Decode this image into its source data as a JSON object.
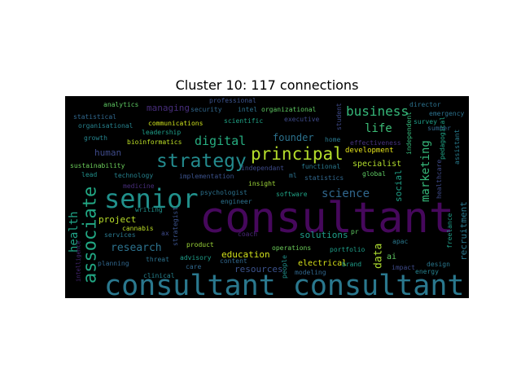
{
  "chart_data": {
    "type": "wordcloud",
    "title": "Cluster 10: 117 connections",
    "background": "#000000",
    "words": [
      {
        "text": "consultant",
        "color": "#46085c"
      },
      {
        "text": "consultant consultant",
        "color": "#2a788e"
      },
      {
        "text": "senior",
        "color": "#21918c"
      },
      {
        "text": "strategy",
        "color": "#238a8d"
      },
      {
        "text": "principal",
        "color": "#b5de2b"
      },
      {
        "text": "associate",
        "color": "#22a884"
      },
      {
        "text": "business",
        "color": "#35b779"
      },
      {
        "text": "digital",
        "color": "#27ad81"
      },
      {
        "text": "life",
        "color": "#3bbb75"
      },
      {
        "text": "science",
        "color": "#31688e"
      },
      {
        "text": "marketing",
        "color": "#35b779"
      },
      {
        "text": "health",
        "color": "#20a386"
      },
      {
        "text": "research",
        "color": "#2c728e"
      },
      {
        "text": "data",
        "color": "#addc30"
      },
      {
        "text": "founder",
        "color": "#2c728e"
      },
      {
        "text": "human",
        "color": "#3e4a89"
      },
      {
        "text": "project",
        "color": "#b8de29"
      },
      {
        "text": "education",
        "color": "#d2e21b"
      },
      {
        "text": "social",
        "color": "#1fa187"
      },
      {
        "text": "recruitment",
        "color": "#2a788e"
      },
      {
        "text": "solutions",
        "color": "#1f9e89"
      },
      {
        "text": "managing",
        "color": "#472d7b"
      },
      {
        "text": "specialist",
        "color": "#b2dd2d"
      },
      {
        "text": "development",
        "color": "#e5e419"
      },
      {
        "text": "resources",
        "color": "#3b528b"
      },
      {
        "text": "ai",
        "color": "#5ec962"
      },
      {
        "text": "electrical",
        "color": "#d8e219"
      },
      {
        "text": "analytics",
        "color": "#5ec962"
      },
      {
        "text": "professional",
        "color": "#3b528b"
      },
      {
        "text": "security",
        "color": "#31688e"
      },
      {
        "text": "intel",
        "color": "#2c728e"
      },
      {
        "text": "organizational",
        "color": "#5ec962"
      },
      {
        "text": "director",
        "color": "#2c728e"
      },
      {
        "text": "statistical",
        "color": "#31688e"
      },
      {
        "text": "communications",
        "color": "#cde11d"
      },
      {
        "text": "scientific",
        "color": "#20a386"
      },
      {
        "text": "executive",
        "color": "#3e4a89"
      },
      {
        "text": "student",
        "color": "#3e4a89"
      },
      {
        "text": "independent",
        "color": "#35b779"
      },
      {
        "text": "emergency",
        "color": "#2c728e"
      },
      {
        "text": "survey",
        "color": "#1f9e89"
      },
      {
        "text": "organisational",
        "color": "#26828e"
      },
      {
        "text": "leadership",
        "color": "#1f9e89"
      },
      {
        "text": "summer",
        "color": "#31688e"
      },
      {
        "text": "growth",
        "color": "#25848e"
      },
      {
        "text": "bioinformatics",
        "color": "#bddf26"
      },
      {
        "text": "home",
        "color": "#2a788e"
      },
      {
        "text": "pedagogical",
        "color": "#20a386"
      },
      {
        "text": "effectiveness",
        "color": "#46327e"
      },
      {
        "text": "assistant",
        "color": "#287c8e"
      },
      {
        "text": "sustainability",
        "color": "#6ccd5a"
      },
      {
        "text": "technology",
        "color": "#26828e"
      },
      {
        "text": "implementation",
        "color": "#3b528b"
      },
      {
        "text": "independant",
        "color": "#3e4a89"
      },
      {
        "text": "functional",
        "color": "#2a788e"
      },
      {
        "text": "lead",
        "color": "#21918c"
      },
      {
        "text": "ml",
        "color": "#2c728e"
      },
      {
        "text": "statistics",
        "color": "#31688e"
      },
      {
        "text": "global",
        "color": "#5ec962"
      },
      {
        "text": "healthcare",
        "color": "#3e4a89"
      },
      {
        "text": "insight",
        "color": "#9fda3a"
      },
      {
        "text": "medicine",
        "color": "#472d7b"
      },
      {
        "text": "writing",
        "color": "#21918c"
      },
      {
        "text": "psychologist",
        "color": "#2c728e"
      },
      {
        "text": "engineer",
        "color": "#2c728e"
      },
      {
        "text": "software",
        "color": "#20a386"
      },
      {
        "text": "strategist",
        "color": "#3b528b"
      },
      {
        "text": "cannabis",
        "color": "#bddf26"
      },
      {
        "text": "ax",
        "color": "#3e4a89"
      },
      {
        "text": "services",
        "color": "#2a788e"
      },
      {
        "text": "coach",
        "color": "#482878"
      },
      {
        "text": "pr",
        "color": "#5ec962"
      },
      {
        "text": "portfolio",
        "color": "#1f9e89"
      },
      {
        "text": "apac",
        "color": "#2a788e"
      },
      {
        "text": "freelance",
        "color": "#1f9e89"
      },
      {
        "text": "product",
        "color": "#9fda3a"
      },
      {
        "text": "operations",
        "color": "#6ccd5a"
      },
      {
        "text": "advisory",
        "color": "#1f9e89"
      },
      {
        "text": "threat",
        "color": "#2c728e"
      },
      {
        "text": "planning",
        "color": "#31688e"
      },
      {
        "text": "content",
        "color": "#31688e"
      },
      {
        "text": "care",
        "color": "#31688e"
      },
      {
        "text": "clinical",
        "color": "#26828e"
      },
      {
        "text": "people",
        "color": "#21918c"
      },
      {
        "text": "brand",
        "color": "#1f9e89"
      },
      {
        "text": "modeling",
        "color": "#31688e"
      },
      {
        "text": "impact",
        "color": "#3e4a89"
      },
      {
        "text": "design",
        "color": "#2a788e"
      },
      {
        "text": "energy",
        "color": "#26828e"
      },
      {
        "text": "intelligence",
        "color": "#482878"
      }
    ]
  }
}
